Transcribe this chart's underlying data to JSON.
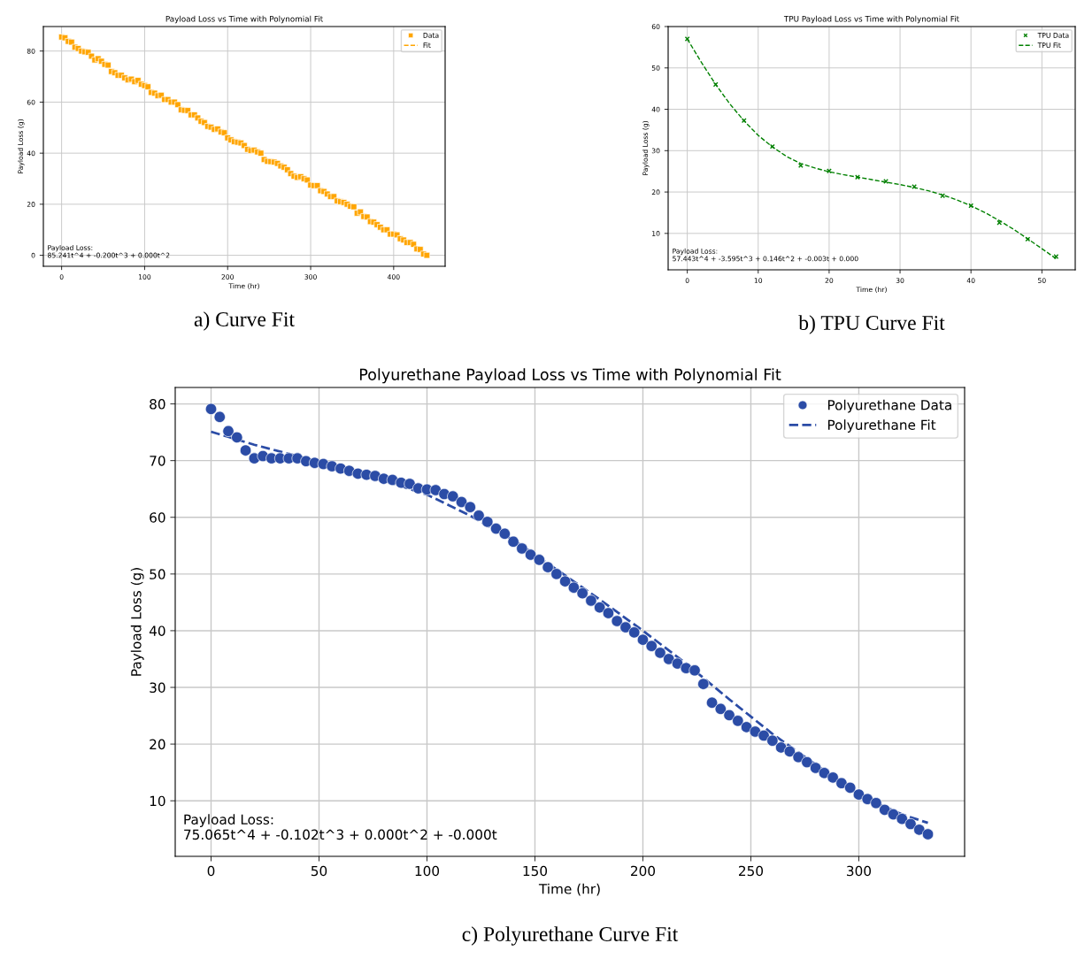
{
  "chart_data": [
    {
      "type": "scatter",
      "title": "Payload Loss vs Time with Polynomial Fit",
      "subtitle": "a) Curve Fit",
      "xlabel": "Time (hr)",
      "ylabel": "Payload Loss (g)",
      "xlim": [
        -22,
        462
      ],
      "ylim": [
        -4.3,
        89.6
      ],
      "xticks": [
        0,
        100,
        200,
        300,
        400
      ],
      "yticks": [
        0,
        20,
        40,
        60,
        80
      ],
      "grid": true,
      "legend": "top right",
      "annotations": [
        "Payload Loss:\n85.241t^4 + -0.200t^3 + 0.000t^2"
      ],
      "series": [
        {
          "name": "Data",
          "type": "scatter",
          "marker": "square",
          "color": "#ffa500",
          "x": [
            0,
            4,
            8,
            12,
            16,
            20,
            24,
            28,
            32,
            36,
            40,
            44,
            48,
            52,
            56,
            60,
            64,
            68,
            72,
            76,
            80,
            84,
            88,
            92,
            96,
            100,
            104,
            108,
            112,
            116,
            120,
            124,
            128,
            132,
            136,
            140,
            144,
            148,
            152,
            156,
            160,
            164,
            168,
            172,
            176,
            180,
            184,
            188,
            192,
            196,
            200,
            204,
            208,
            212,
            216,
            220,
            224,
            228,
            232,
            236,
            240,
            244,
            248,
            252,
            256,
            260,
            264,
            268,
            272,
            276,
            280,
            284,
            288,
            292,
            296,
            300,
            304,
            308,
            312,
            316,
            320,
            324,
            328,
            332,
            336,
            340,
            344,
            348,
            352,
            356,
            360,
            364,
            368,
            372,
            376,
            380,
            384,
            388,
            392,
            396,
            400,
            404,
            408,
            412,
            416,
            420,
            424,
            428,
            432,
            436,
            440
          ],
          "values": [
            85.5,
            85.2,
            83.8,
            83.5,
            81.5,
            81,
            80,
            79.7,
            79.5,
            78,
            76.5,
            77,
            76,
            74.8,
            74.5,
            72,
            71.5,
            70.5,
            70.5,
            69.5,
            68.7,
            69,
            68,
            68.5,
            67,
            66.5,
            66,
            63.8,
            63.5,
            62.5,
            62.7,
            61,
            61,
            60,
            60,
            59,
            57,
            56.8,
            56.7,
            55,
            55,
            53.8,
            52.5,
            52,
            50.5,
            50.2,
            49.3,
            49.5,
            48.3,
            48,
            46,
            45.2,
            44.5,
            44.3,
            44,
            43,
            41.5,
            41,
            41.2,
            40.5,
            40,
            37.5,
            36.8,
            36.7,
            36.5,
            36,
            35,
            34.5,
            33.5,
            32,
            31,
            30.5,
            30.8,
            30,
            29.5,
            27.5,
            27.3,
            27.3,
            25.3,
            25,
            24,
            23,
            23,
            21.3,
            21,
            20.7,
            20,
            19.2,
            19,
            16.5,
            17,
            15.2,
            15,
            13.2,
            13,
            12,
            11,
            10,
            10,
            8.3,
            8.3,
            8,
            6.5,
            6,
            5,
            5,
            4.3,
            2.5,
            2.3,
            0.5,
            0
          ]
        },
        {
          "name": "Fit",
          "type": "line",
          "line_style": "dashed",
          "color": "#ffa500"
        }
      ]
    },
    {
      "type": "scatter",
      "title": "TPU Payload Loss vs Time with Polynomial Fit",
      "subtitle": "b) TPU Curve Fit",
      "xlabel": "Time (hr)",
      "ylabel": "Payload Loss (g)",
      "xlim": [
        -2.7,
        54.7
      ],
      "ylim": [
        1.2,
        60
      ],
      "xticks": [
        0,
        10,
        20,
        30,
        40,
        50
      ],
      "yticks": [
        10,
        20,
        30,
        40,
        50,
        60
      ],
      "grid": true,
      "legend": "top right",
      "annotations": [
        "Payload Loss:\n57.443t^4 + -3.595t^3 + 0.146t^2 + -0.003t + 0.000"
      ],
      "series": [
        {
          "name": "TPU Data",
          "type": "scatter",
          "marker": "cross",
          "color": "#008000",
          "x": [
            0,
            4,
            8,
            12,
            16,
            20,
            24,
            28,
            32,
            36,
            40,
            44,
            48,
            52
          ],
          "values": [
            57,
            46,
            37.3,
            31,
            26.4,
            25.1,
            23.6,
            22.6,
            21.3,
            19.1,
            16.7,
            12.6,
            8.6,
            4.4
          ]
        },
        {
          "name": "TPU Fit",
          "type": "line",
          "line_style": "dashed",
          "color": "#008000",
          "x": [
            0,
            2,
            4,
            6,
            8,
            10,
            12,
            14,
            16,
            18,
            20,
            22,
            24,
            26,
            28,
            30,
            32,
            34,
            36,
            38,
            40,
            42,
            44,
            46,
            48,
            50,
            52
          ],
          "values": [
            57,
            51.3,
            46,
            41.3,
            37.2,
            33.7,
            30.9,
            28.6,
            26.9,
            25.8,
            24.9,
            24.2,
            23.6,
            23,
            22.4,
            21.8,
            21.1,
            20.3,
            19.3,
            18.1,
            16.7,
            15,
            13.1,
            11,
            8.7,
            6.3,
            3.9
          ]
        }
      ]
    },
    {
      "type": "scatter",
      "title": "Polyurethane Payload Loss vs Time with Polynomial Fit",
      "subtitle": "c) Polyurethane Curve Fit",
      "xlabel": "Time (hr)",
      "ylabel": "Payload Loss (g)",
      "xlim": [
        -16.6,
        349
      ],
      "ylim": [
        0.2,
        82.9
      ],
      "xticks": [
        0,
        50,
        100,
        150,
        200,
        250,
        300
      ],
      "yticks": [
        10,
        20,
        30,
        40,
        50,
        60,
        70,
        80
      ],
      "grid": true,
      "legend": "top right",
      "annotations": [
        "Payload Loss:\n75.065t^4 + -0.102t^3 + 0.000t^2 + -0.000t"
      ],
      "series": [
        {
          "name": "Polyurethane Data",
          "type": "scatter",
          "marker": "circle",
          "color": "#2b4ca6",
          "x": [
            0,
            4,
            8,
            12,
            16,
            20,
            24,
            28,
            32,
            36,
            40,
            44,
            48,
            52,
            56,
            60,
            64,
            68,
            72,
            76,
            80,
            84,
            88,
            92,
            96,
            100,
            104,
            108,
            112,
            116,
            120,
            124,
            128,
            132,
            136,
            140,
            144,
            148,
            152,
            156,
            160,
            164,
            168,
            172,
            176,
            180,
            184,
            188,
            192,
            196,
            200,
            204,
            208,
            212,
            216,
            220,
            224,
            228,
            232,
            236,
            240,
            244,
            248,
            252,
            256,
            260,
            264,
            268,
            272,
            276,
            280,
            284,
            288,
            292,
            296,
            300,
            304,
            308,
            312,
            316,
            320,
            324,
            328,
            332
          ],
          "values": [
            79.1,
            77.7,
            75.2,
            74.1,
            71.8,
            70.4,
            70.8,
            70.4,
            70.4,
            70.4,
            70.4,
            69.9,
            69.6,
            69.4,
            69,
            68.6,
            68.2,
            67.7,
            67.5,
            67.3,
            66.8,
            66.6,
            66.1,
            65.9,
            65.1,
            64.9,
            64.8,
            64.1,
            63.7,
            62.7,
            61.8,
            60.3,
            59.2,
            58,
            57.1,
            55.7,
            54.5,
            53.4,
            52.5,
            51.2,
            50,
            48.7,
            47.6,
            46.6,
            45.3,
            44.1,
            43.1,
            41.7,
            40.6,
            39.7,
            38.4,
            37.3,
            36.1,
            35,
            34.2,
            33.4,
            33,
            30.6,
            27.3,
            26.2,
            25.1,
            24.1,
            23,
            22.2,
            21.5,
            20.6,
            19.4,
            18.7,
            17.7,
            16.8,
            15.8,
            14.9,
            14.1,
            13.1,
            12.3,
            11.1,
            10.3,
            9.6,
            8.4,
            7.6,
            6.8,
            5.9,
            4.9,
            4.1
          ]
        },
        {
          "name": "Polyurethane Fit",
          "type": "line",
          "line_style": "dashed",
          "color": "#2b4ca6",
          "x": [
            0,
            20,
            40,
            60,
            80,
            100,
            120,
            140,
            160,
            180,
            200,
            220,
            240,
            260,
            280,
            300,
            320,
            332
          ],
          "values": [
            75.1,
            72.8,
            70.8,
            68.6,
            66.5,
            64,
            60.3,
            56,
            50.8,
            45.5,
            40,
            34.2,
            27.9,
            21.8,
            16.4,
            11,
            7.6,
            6.1
          ]
        }
      ]
    }
  ]
}
